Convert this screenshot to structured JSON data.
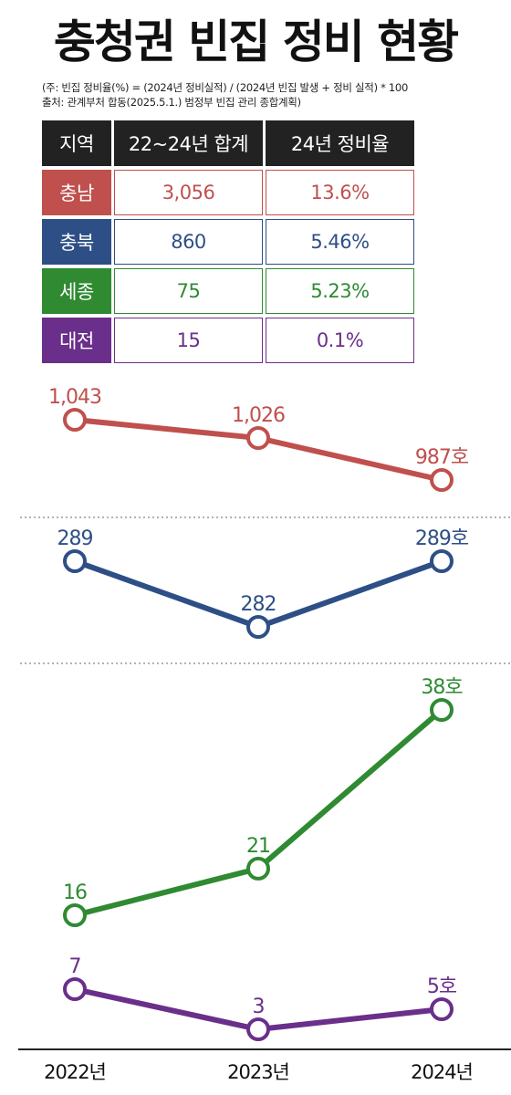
{
  "title": "충청권 빈집 정비 현황",
  "note_formula": "(주: 빈집 정비율(%) = (2024년 정비실적) / (2024년 빈집 발생 + 정비 실적) * 100",
  "note_source": "출처: 관계부처 합동(2025.5.1.) 범정부 빈집 관리 종합계획)",
  "table": {
    "headers": [
      "지역",
      "22~24년 합계",
      "24년 정비율"
    ],
    "rows": [
      {
        "region": "충남",
        "total": "3,056",
        "rate": "13.6%",
        "color": "#c0504d"
      },
      {
        "region": "충북",
        "total": "860",
        "rate": "5.46%",
        "color": "#2e4f86"
      },
      {
        "region": "세종",
        "total": "75",
        "rate": "5.23%",
        "color": "#2f8a32"
      },
      {
        "region": "대전",
        "total": "15",
        "rate": "0.1%",
        "color": "#6a2f8a"
      }
    ]
  },
  "chart_data": {
    "type": "line",
    "categories": [
      "2022년",
      "2023년",
      "2024년"
    ],
    "series": [
      {
        "name": "충남",
        "values": [
          1043,
          1026,
          987
        ],
        "labels": [
          "1,043",
          "1,026",
          "987호"
        ],
        "color": "#c0504d"
      },
      {
        "name": "충북",
        "values": [
          289,
          282,
          289
        ],
        "labels": [
          "289",
          "282",
          "289호"
        ],
        "color": "#2e4f86"
      },
      {
        "name": "세종",
        "values": [
          16,
          21,
          38
        ],
        "labels": [
          "16",
          "21",
          "38호"
        ],
        "color": "#2f8a32"
      },
      {
        "name": "대전",
        "values": [
          7,
          3,
          5
        ],
        "labels": [
          "7",
          "3",
          "5호"
        ],
        "color": "#6a2f8a"
      }
    ],
    "unit": "호",
    "grid": false
  }
}
